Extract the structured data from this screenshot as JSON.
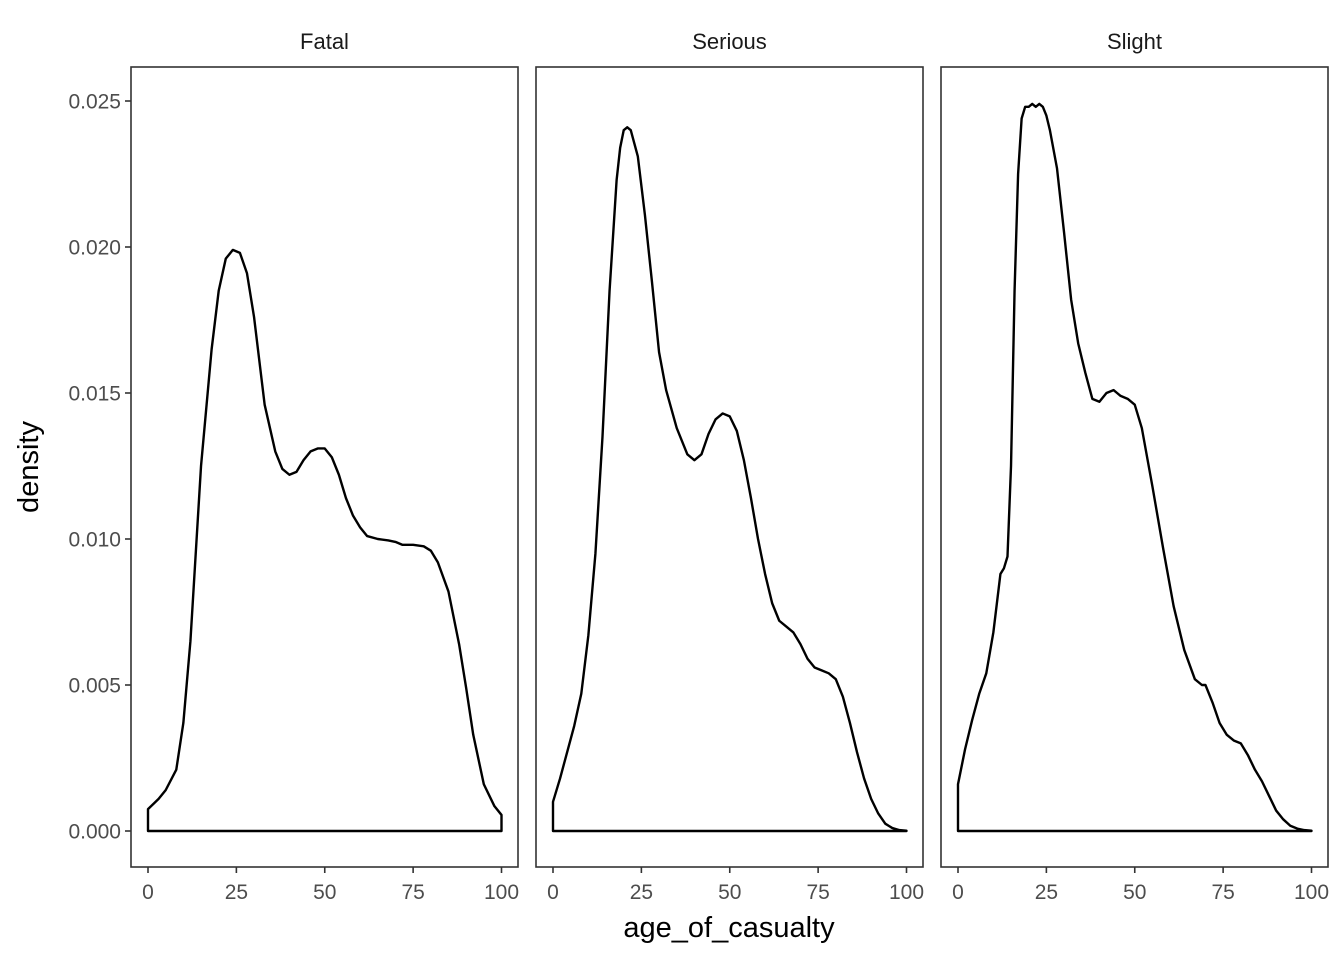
{
  "chart_data": {
    "type": "area",
    "facet": "severity",
    "xlabel": "age_of_casualty",
    "ylabel": "density",
    "xlim": [
      0,
      100
    ],
    "ylim": [
      0,
      0.025
    ],
    "x_ticks": [
      0,
      25,
      50,
      75,
      100
    ],
    "x_tick_labels": [
      "0",
      "25",
      "50",
      "75",
      "100"
    ],
    "y_ticks": [
      0,
      0.005,
      0.01,
      0.015,
      0.02,
      0.025
    ],
    "y_tick_labels": [
      "0.000",
      "0.005",
      "0.010",
      "0.015",
      "0.020",
      "0.025"
    ],
    "grid": false,
    "line_color": "#000000",
    "panels": [
      {
        "label": "Fatal",
        "x": [
          0,
          3,
          5,
          8,
          10,
          12,
          15,
          18,
          20,
          22,
          24,
          26,
          28,
          30,
          33,
          36,
          38,
          40,
          42,
          44,
          46,
          48,
          50,
          52,
          54,
          56,
          58,
          60,
          62,
          65,
          68,
          70,
          72,
          75,
          78,
          80,
          82,
          85,
          88,
          90,
          92,
          95,
          98,
          100
        ],
        "y": [
          0.00075,
          0.0011,
          0.0014,
          0.0021,
          0.0037,
          0.0065,
          0.0125,
          0.0165,
          0.0185,
          0.0196,
          0.0199,
          0.0198,
          0.0191,
          0.0176,
          0.0146,
          0.013,
          0.0124,
          0.0122,
          0.0123,
          0.0127,
          0.013,
          0.0131,
          0.0131,
          0.0128,
          0.0122,
          0.0114,
          0.0108,
          0.0104,
          0.0101,
          0.01,
          0.00995,
          0.0099,
          0.0098,
          0.0098,
          0.00975,
          0.0096,
          0.0092,
          0.0082,
          0.0064,
          0.0049,
          0.0033,
          0.0016,
          0.00085,
          0.00055
        ]
      },
      {
        "label": "Serious",
        "x": [
          0,
          2,
          4,
          6,
          8,
          10,
          12,
          14,
          16,
          18,
          19,
          20,
          21,
          22,
          24,
          26,
          28,
          30,
          32,
          35,
          38,
          40,
          42,
          44,
          46,
          48,
          50,
          52,
          54,
          56,
          58,
          60,
          62,
          64,
          66,
          68,
          70,
          72,
          74,
          76,
          78,
          80,
          82,
          84,
          86,
          88,
          90,
          92,
          94,
          96,
          98,
          100
        ],
        "y": [
          0.001,
          0.0018,
          0.0027,
          0.0036,
          0.0047,
          0.0067,
          0.0095,
          0.0135,
          0.0185,
          0.0223,
          0.0234,
          0.024,
          0.0241,
          0.024,
          0.0231,
          0.0211,
          0.0188,
          0.0164,
          0.0151,
          0.0138,
          0.0129,
          0.0127,
          0.0129,
          0.0136,
          0.0141,
          0.0143,
          0.0142,
          0.0137,
          0.0127,
          0.0114,
          0.01,
          0.0088,
          0.0078,
          0.0072,
          0.007,
          0.0068,
          0.0064,
          0.0059,
          0.0056,
          0.0055,
          0.0054,
          0.0052,
          0.0046,
          0.0037,
          0.0027,
          0.0018,
          0.0011,
          0.0006,
          0.00025,
          0.0001,
          3e-05,
          1e-05
        ]
      },
      {
        "label": "Slight",
        "x": [
          0,
          2,
          4,
          6,
          8,
          10,
          12,
          13,
          14,
          15,
          16,
          17,
          18,
          19,
          20,
          21,
          22,
          23,
          24,
          25,
          26,
          28,
          30,
          32,
          34,
          36,
          38,
          40,
          42,
          44,
          45,
          46,
          48,
          50,
          52,
          55,
          58,
          61,
          64,
          67,
          69,
          70,
          72,
          74,
          76,
          78,
          80,
          82,
          84,
          86,
          88,
          90,
          92,
          94,
          96,
          98,
          100
        ],
        "y": [
          0.0016,
          0.0028,
          0.0038,
          0.0047,
          0.0054,
          0.0068,
          0.0088,
          0.009,
          0.0094,
          0.0125,
          0.0185,
          0.0225,
          0.0244,
          0.0248,
          0.0248,
          0.0249,
          0.0248,
          0.0249,
          0.0248,
          0.0245,
          0.024,
          0.0227,
          0.0205,
          0.0182,
          0.0167,
          0.0157,
          0.0148,
          0.0147,
          0.015,
          0.0151,
          0.015,
          0.0149,
          0.0148,
          0.0146,
          0.0138,
          0.0118,
          0.0097,
          0.0077,
          0.0062,
          0.0052,
          0.005,
          0.005,
          0.0044,
          0.0037,
          0.0033,
          0.0031,
          0.003,
          0.0026,
          0.0021,
          0.0017,
          0.0012,
          0.0007,
          0.0004,
          0.00018,
          8e-05,
          3e-05,
          1e-05
        ]
      }
    ]
  }
}
